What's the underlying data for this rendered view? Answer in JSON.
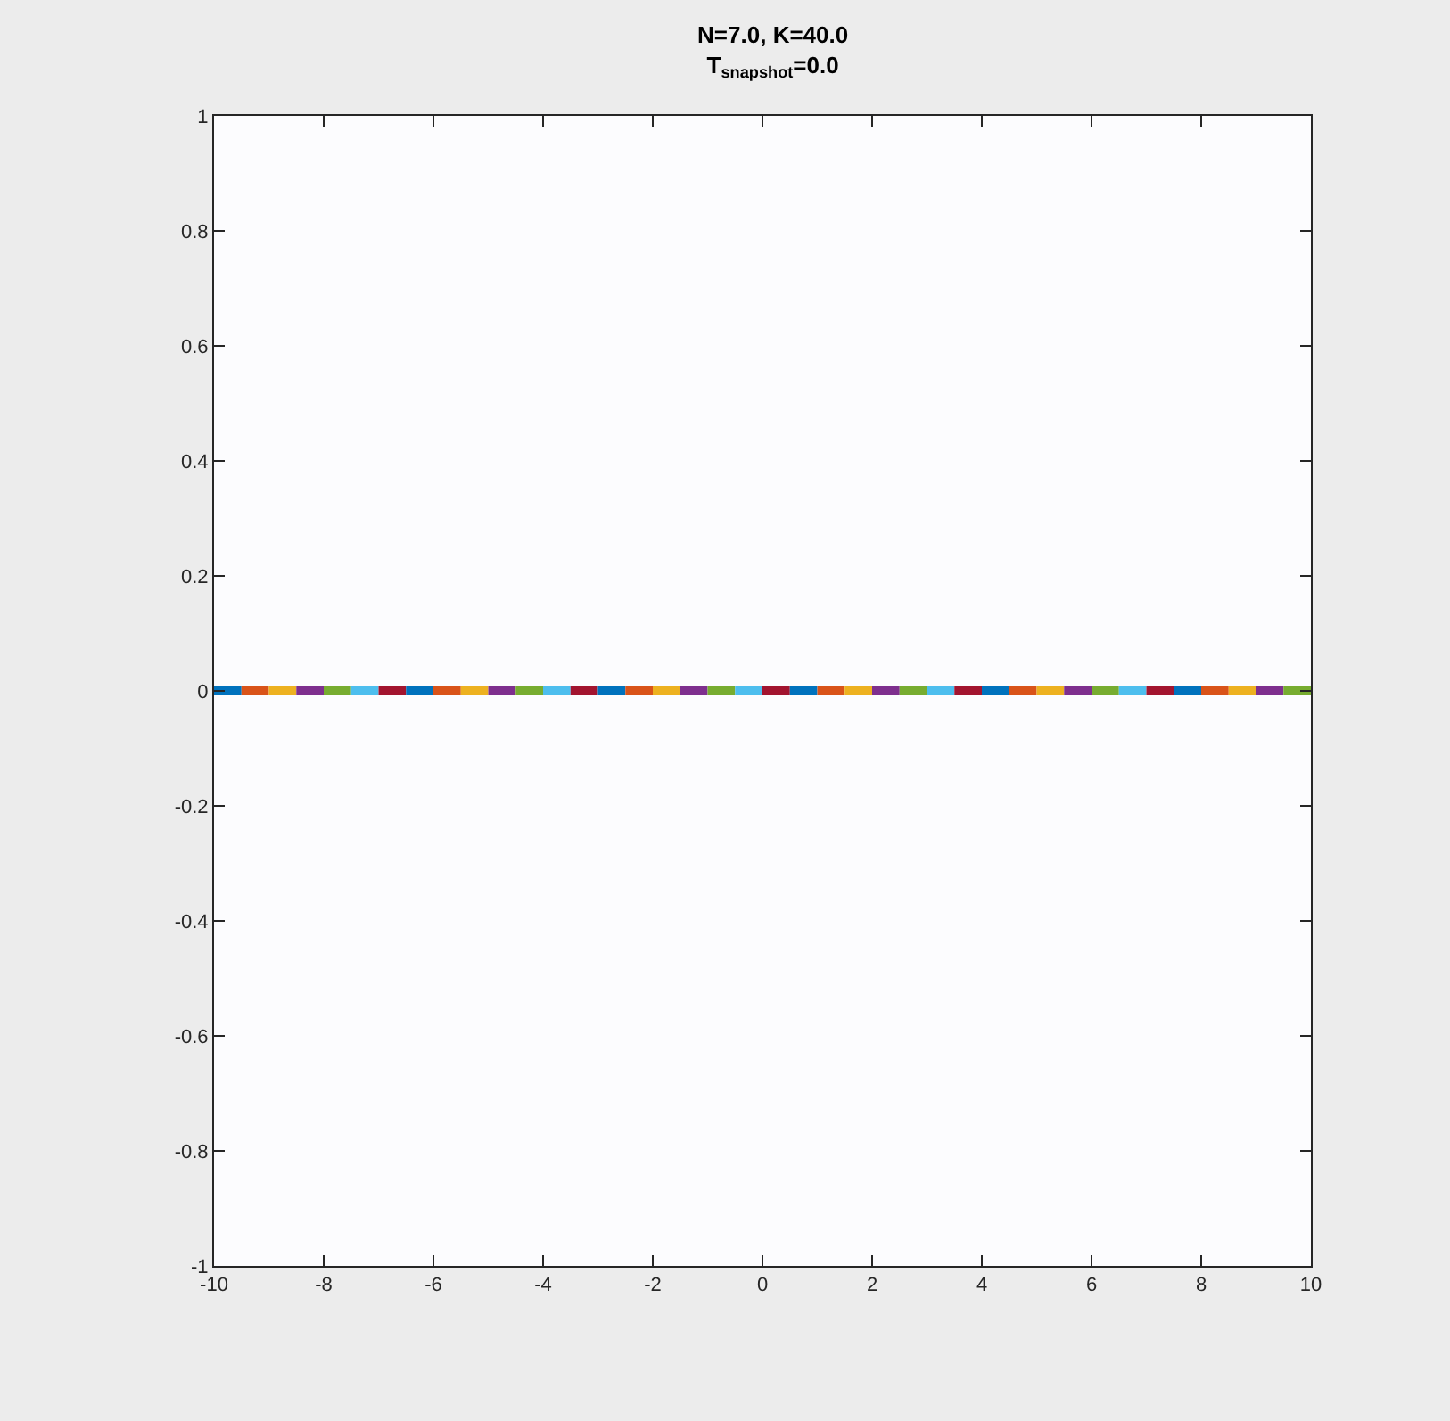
{
  "chart_data": {
    "type": "line",
    "title": "N=7.0, K=40.0",
    "subtitle": "T$_{snapshot}$=0.0",
    "series": [
      {
        "color": "#0072bd",
        "x": [
          -10,
          -9.5
        ],
        "values": [
          0,
          0
        ]
      },
      {
        "color": "#d95319",
        "x": [
          -9.5,
          -9
        ],
        "values": [
          0,
          0
        ]
      },
      {
        "color": "#edb120",
        "x": [
          -9,
          -8.5
        ],
        "values": [
          0,
          0
        ]
      },
      {
        "color": "#7e2f8e",
        "x": [
          -8.5,
          -8
        ],
        "values": [
          0,
          0
        ]
      },
      {
        "color": "#77ac30",
        "x": [
          -8,
          -7.5
        ],
        "values": [
          0,
          0
        ]
      },
      {
        "color": "#4dbeee",
        "x": [
          -7.5,
          -7
        ],
        "values": [
          0,
          0
        ]
      },
      {
        "color": "#a2142f",
        "x": [
          -7,
          -6.5
        ],
        "values": [
          0,
          0
        ]
      },
      {
        "color": "#0072bd",
        "x": [
          -6.5,
          -6
        ],
        "values": [
          0,
          0
        ]
      },
      {
        "color": "#d95319",
        "x": [
          -6,
          -5.5
        ],
        "values": [
          0,
          0
        ]
      },
      {
        "color": "#edb120",
        "x": [
          -5.5,
          -5
        ],
        "values": [
          0,
          0
        ]
      },
      {
        "color": "#7e2f8e",
        "x": [
          -5,
          -4.5
        ],
        "values": [
          0,
          0
        ]
      },
      {
        "color": "#77ac30",
        "x": [
          -4.5,
          -4
        ],
        "values": [
          0,
          0
        ]
      },
      {
        "color": "#4dbeee",
        "x": [
          -4,
          -3.5
        ],
        "values": [
          0,
          0
        ]
      },
      {
        "color": "#a2142f",
        "x": [
          -3.5,
          -3
        ],
        "values": [
          0,
          0
        ]
      },
      {
        "color": "#0072bd",
        "x": [
          -3,
          -2.5
        ],
        "values": [
          0,
          0
        ]
      },
      {
        "color": "#d95319",
        "x": [
          -2.5,
          -2
        ],
        "values": [
          0,
          0
        ]
      },
      {
        "color": "#edb120",
        "x": [
          -2,
          -1.5
        ],
        "values": [
          0,
          0
        ]
      },
      {
        "color": "#7e2f8e",
        "x": [
          -1.5,
          -1
        ],
        "values": [
          0,
          0
        ]
      },
      {
        "color": "#77ac30",
        "x": [
          -1,
          -0.5
        ],
        "values": [
          0,
          0
        ]
      },
      {
        "color": "#4dbeee",
        "x": [
          -0.5,
          0
        ],
        "values": [
          0,
          0
        ]
      },
      {
        "color": "#a2142f",
        "x": [
          0,
          0.5
        ],
        "values": [
          0,
          0
        ]
      },
      {
        "color": "#0072bd",
        "x": [
          0.5,
          1
        ],
        "values": [
          0,
          0
        ]
      },
      {
        "color": "#d95319",
        "x": [
          1,
          1.5
        ],
        "values": [
          0,
          0
        ]
      },
      {
        "color": "#edb120",
        "x": [
          1.5,
          2
        ],
        "values": [
          0,
          0
        ]
      },
      {
        "color": "#7e2f8e",
        "x": [
          2,
          2.5
        ],
        "values": [
          0,
          0
        ]
      },
      {
        "color": "#77ac30",
        "x": [
          2.5,
          3
        ],
        "values": [
          0,
          0
        ]
      },
      {
        "color": "#4dbeee",
        "x": [
          3,
          3.5
        ],
        "values": [
          0,
          0
        ]
      },
      {
        "color": "#a2142f",
        "x": [
          3.5,
          4
        ],
        "values": [
          0,
          0
        ]
      },
      {
        "color": "#0072bd",
        "x": [
          4,
          4.5
        ],
        "values": [
          0,
          0
        ]
      },
      {
        "color": "#d95319",
        "x": [
          4.5,
          5
        ],
        "values": [
          0,
          0
        ]
      },
      {
        "color": "#edb120",
        "x": [
          5,
          5.5
        ],
        "values": [
          0,
          0
        ]
      },
      {
        "color": "#7e2f8e",
        "x": [
          5.5,
          6
        ],
        "values": [
          0,
          0
        ]
      },
      {
        "color": "#77ac30",
        "x": [
          6,
          6.5
        ],
        "values": [
          0,
          0
        ]
      },
      {
        "color": "#4dbeee",
        "x": [
          6.5,
          7
        ],
        "values": [
          0,
          0
        ]
      },
      {
        "color": "#a2142f",
        "x": [
          7,
          7.5
        ],
        "values": [
          0,
          0
        ]
      },
      {
        "color": "#0072bd",
        "x": [
          7.5,
          8
        ],
        "values": [
          0,
          0
        ]
      },
      {
        "color": "#d95319",
        "x": [
          8,
          8.5
        ],
        "values": [
          0,
          0
        ]
      },
      {
        "color": "#edb120",
        "x": [
          8.5,
          9
        ],
        "values": [
          0,
          0
        ]
      },
      {
        "color": "#7e2f8e",
        "x": [
          9,
          9.5
        ],
        "values": [
          0,
          0
        ]
      },
      {
        "color": "#77ac30",
        "x": [
          9.5,
          10
        ],
        "values": [
          0,
          0
        ]
      }
    ],
    "xlim": [
      -10,
      10
    ],
    "xticks": [
      -10,
      -8,
      -6,
      -4,
      -2,
      0,
      2,
      4,
      6,
      8,
      10
    ],
    "ylim": [
      -1,
      1
    ],
    "yticks": [
      -1,
      -0.8,
      -0.6,
      -0.4,
      -0.2,
      0,
      0.2,
      0.4,
      0.6,
      0.8,
      1
    ],
    "grid": false,
    "marker": "none",
    "line_style": "solid"
  }
}
